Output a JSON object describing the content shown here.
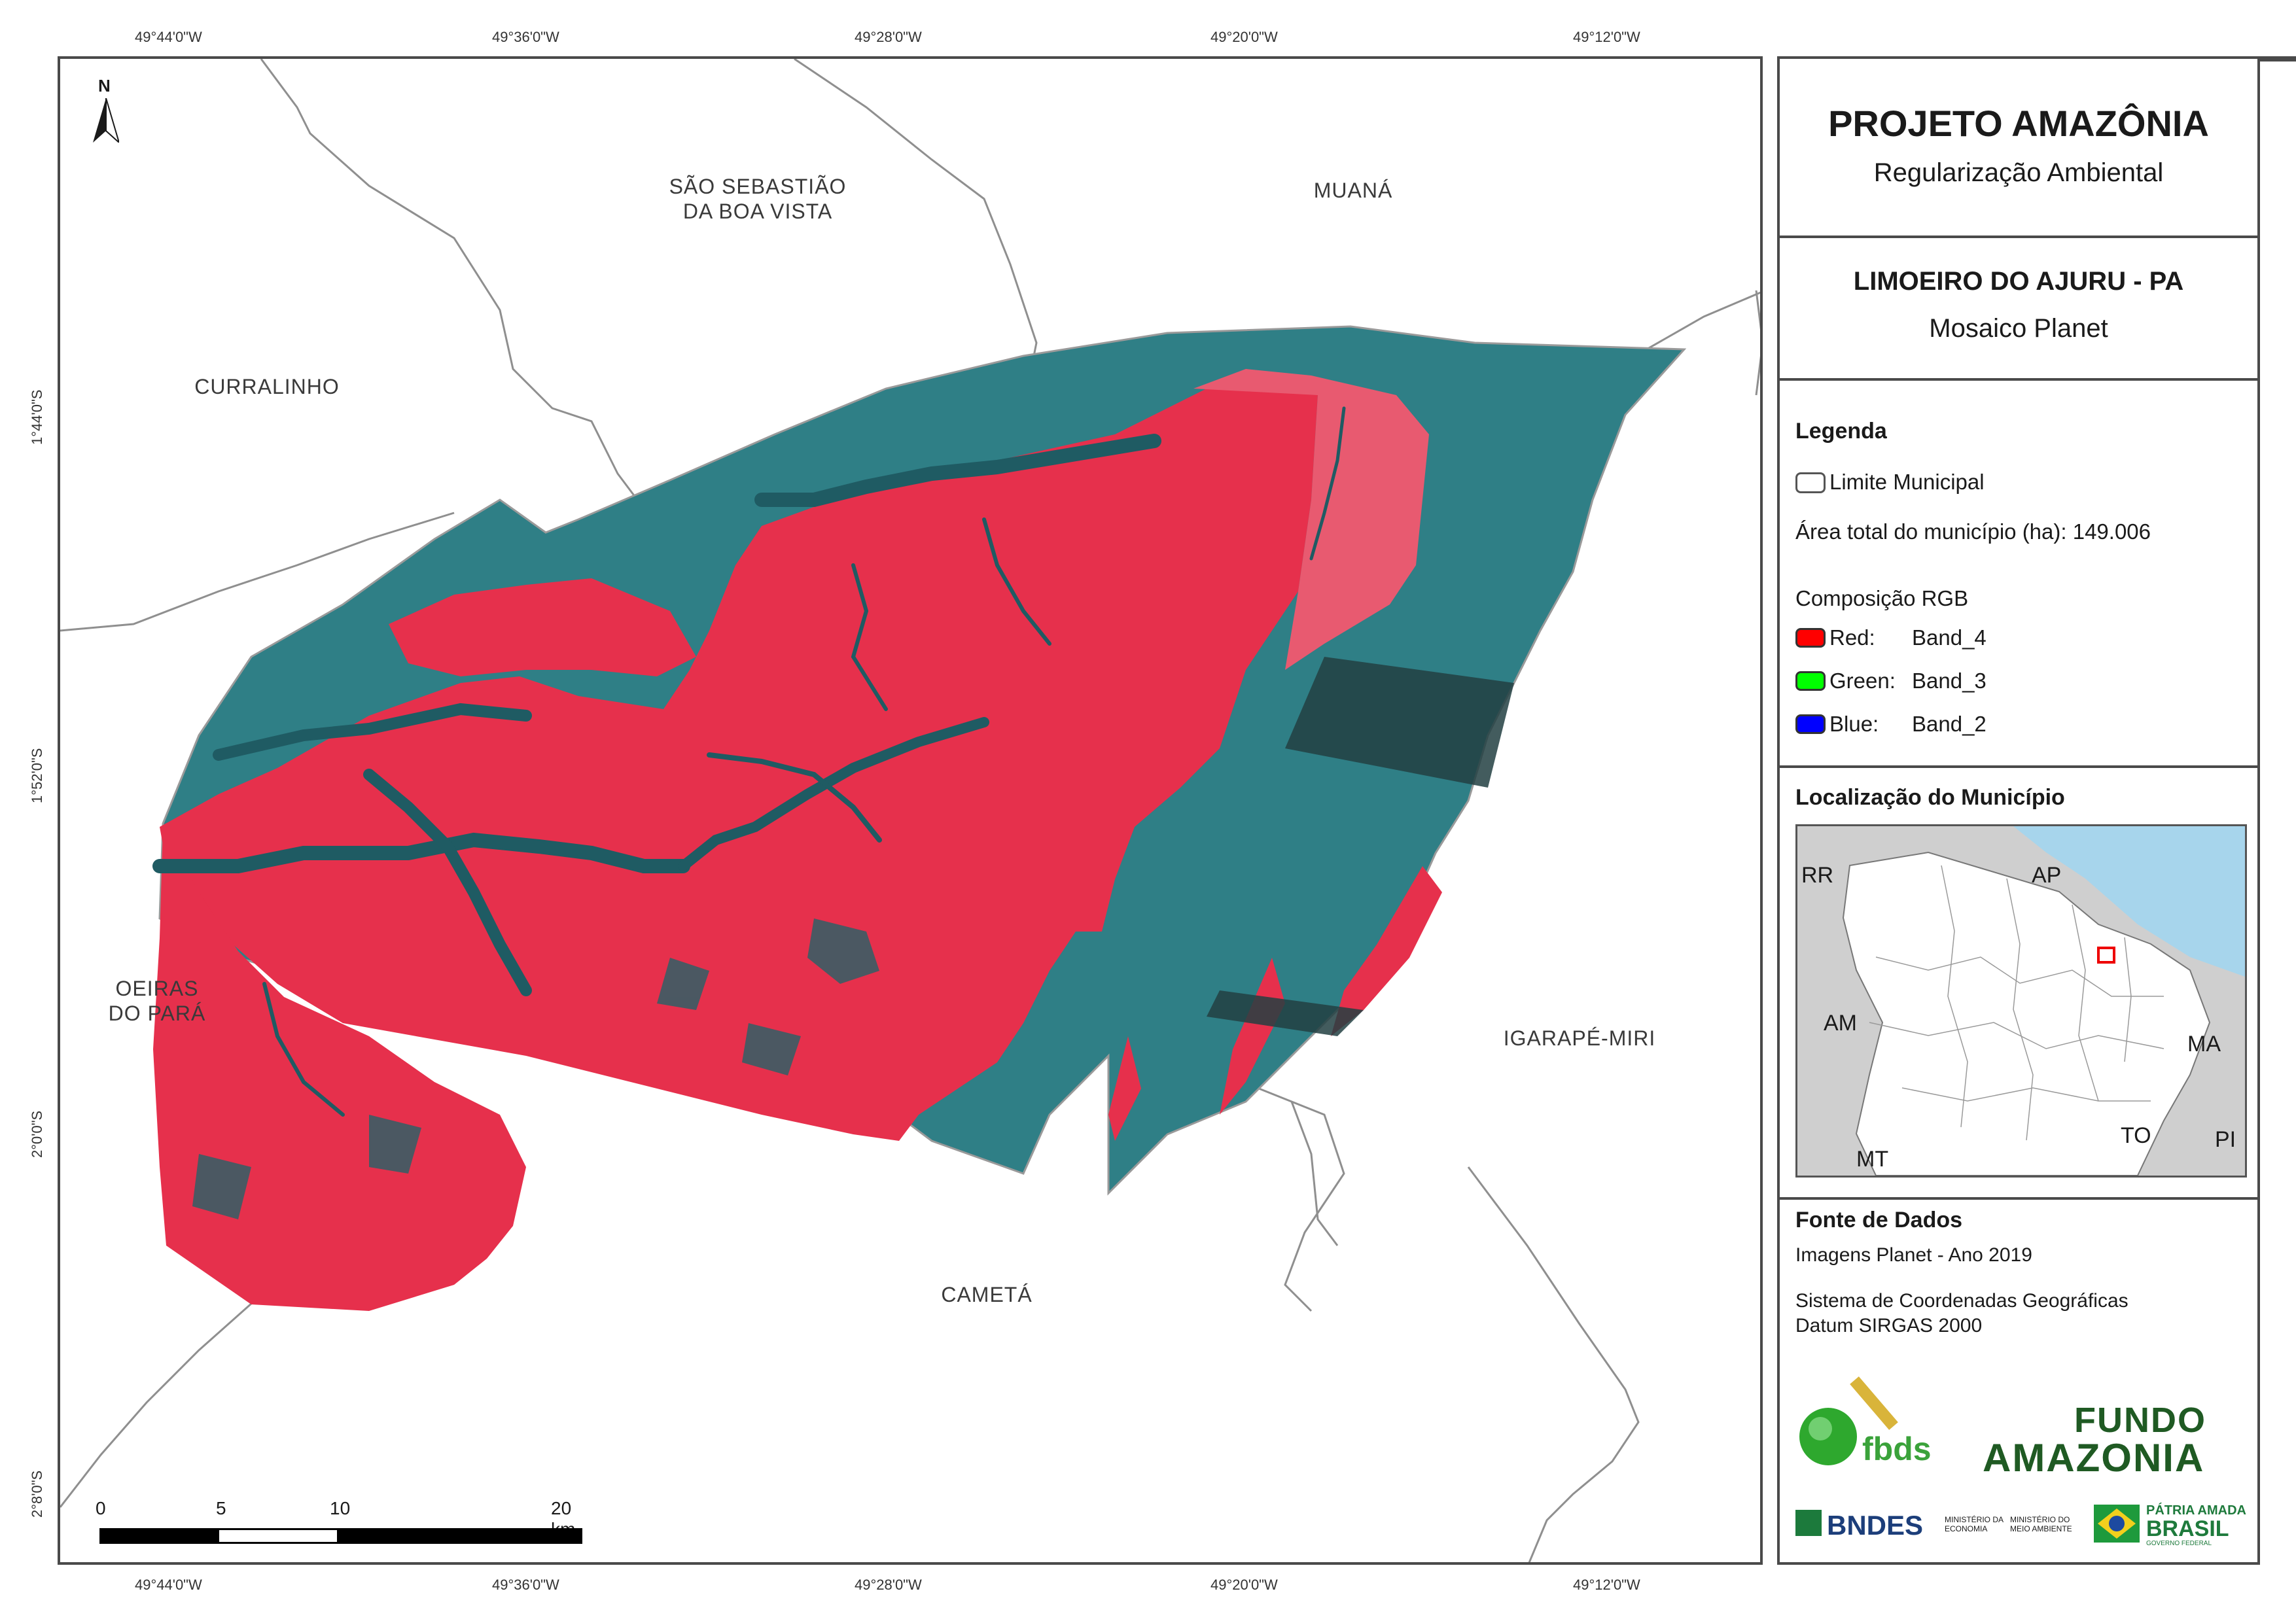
{
  "map": {
    "north_label": "N",
    "coords_top": [
      "49°44'0\"W",
      "49°36'0\"W",
      "49°28'0\"W",
      "49°20'0\"W",
      "49°12'0\"W"
    ],
    "coords_bottom": [
      "49°44'0\"W",
      "49°36'0\"W",
      "49°28'0\"W",
      "49°20'0\"W",
      "49°12'0\"W"
    ],
    "coords_left": [
      "1°44'0\"S",
      "1°52'0\"S",
      "2°0'0\"S",
      "2°8'0\"S"
    ],
    "places": {
      "sao_sebastiao": "SÃO SEBASTIÃO\nDA BOA VISTA",
      "muana": "MUANÁ",
      "curralinho": "CURRALINHO",
      "oeiras": "OEIRAS\nDO PARÁ",
      "igarape_miri": "IGARAPÉ-MIRI",
      "cameta": "CAMETÁ"
    },
    "scale": {
      "labels": [
        "0",
        "5",
        "10",
        "20 km"
      ]
    },
    "colors": {
      "land": "#e8354f",
      "water": "#2f7f86",
      "boundary": "#8a8a8a"
    }
  },
  "panel": {
    "title": "PROJETO AMAZÔNIA",
    "subtitle": "Regularização Ambiental",
    "municipality": "LIMOEIRO DO AJURU - PA",
    "mosaic": "Mosaico Planet",
    "legend": {
      "title": "Legenda",
      "limit_label": "Limite Municipal",
      "area_label": "Área total do município (ha): 149.006",
      "rgb_title": "Composição RGB",
      "bands": [
        {
          "channel": "Red:",
          "band": "Band_4",
          "color": "#ff0000"
        },
        {
          "channel": "Green:",
          "band": "Band_3",
          "color": "#00ff00"
        },
        {
          "channel": "Blue:",
          "band": "Band_2",
          "color": "#0000ff"
        }
      ]
    },
    "location": {
      "title": "Localização do Município",
      "states": [
        "RR",
        "AP",
        "AM",
        "MA",
        "TO",
        "PI",
        "MT"
      ]
    },
    "sources": {
      "title": "Fonte de Dados",
      "line1": "Imagens Planet - Ano 2019",
      "line2": "Sistema de Coordenadas Geográficas",
      "line3": "Datum SIRGAS 2000"
    },
    "logos": {
      "fbds": "fbds",
      "fundo_1": "FUNDO",
      "fundo_2": "AMAZONIA",
      "bndes": "BNDES",
      "min_economia": "MINISTÉRIO DA\nECONOMIA",
      "min_ambiente": "MINISTÉRIO DO\nMEIO AMBIENTE",
      "patria_1": "PÁTRIA AMADA",
      "patria_2": "BRASIL",
      "patria_3": "GOVERNO FEDERAL"
    }
  }
}
